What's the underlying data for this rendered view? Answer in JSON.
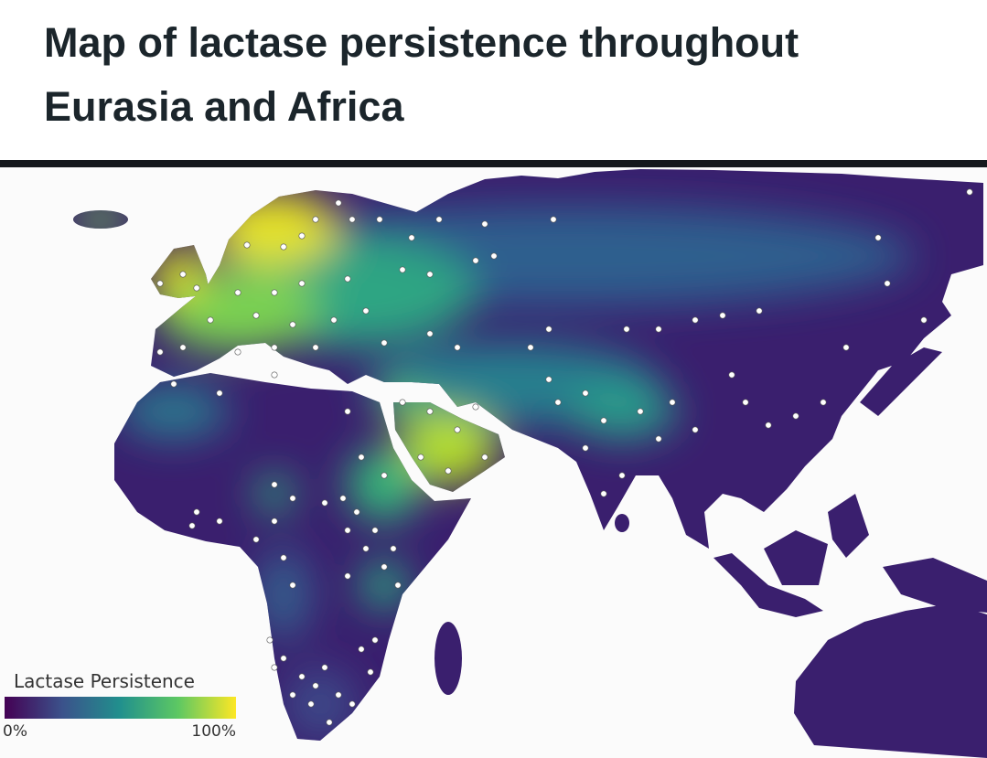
{
  "header": {
    "title": "Map of lactase persistence throughout Eurasia and Africa"
  },
  "map": {
    "legend": {
      "title": "Lactase Persistence",
      "min_label": "0%",
      "max_label": "100%"
    }
  }
}
